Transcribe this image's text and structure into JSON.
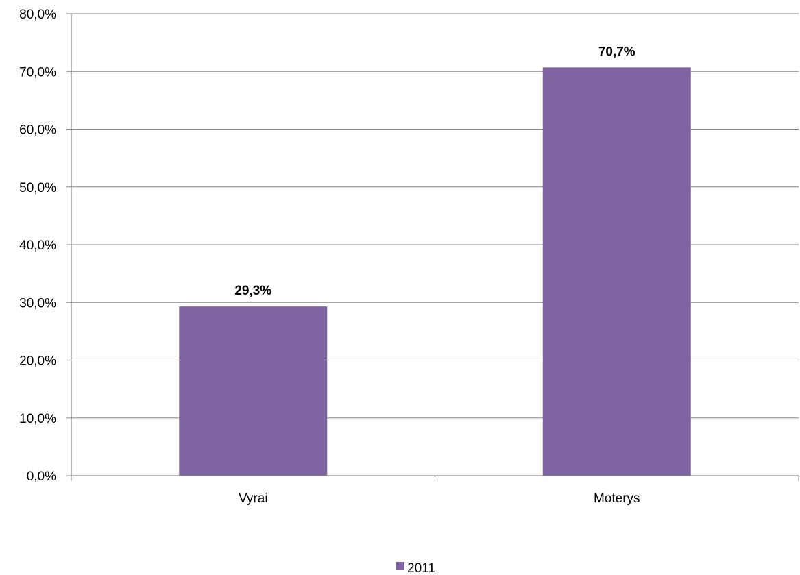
{
  "chart_data": {
    "type": "bar",
    "categories": [
      "Vyrai",
      "Moterys"
    ],
    "series": [
      {
        "name": "2011",
        "values": [
          29.3,
          70.7
        ],
        "color": "#8064a2"
      }
    ],
    "data_labels": [
      "29,3%",
      "70,7%"
    ],
    "y_ticks": [
      "0,0%",
      "10,0%",
      "20,0%",
      "30,0%",
      "40,0%",
      "50,0%",
      "60,0%",
      "70,0%",
      "80,0%"
    ],
    "ylim": [
      0,
      80
    ],
    "grid": true,
    "legend_position": "bottom",
    "title": "",
    "xlabel": "",
    "ylabel": ""
  }
}
